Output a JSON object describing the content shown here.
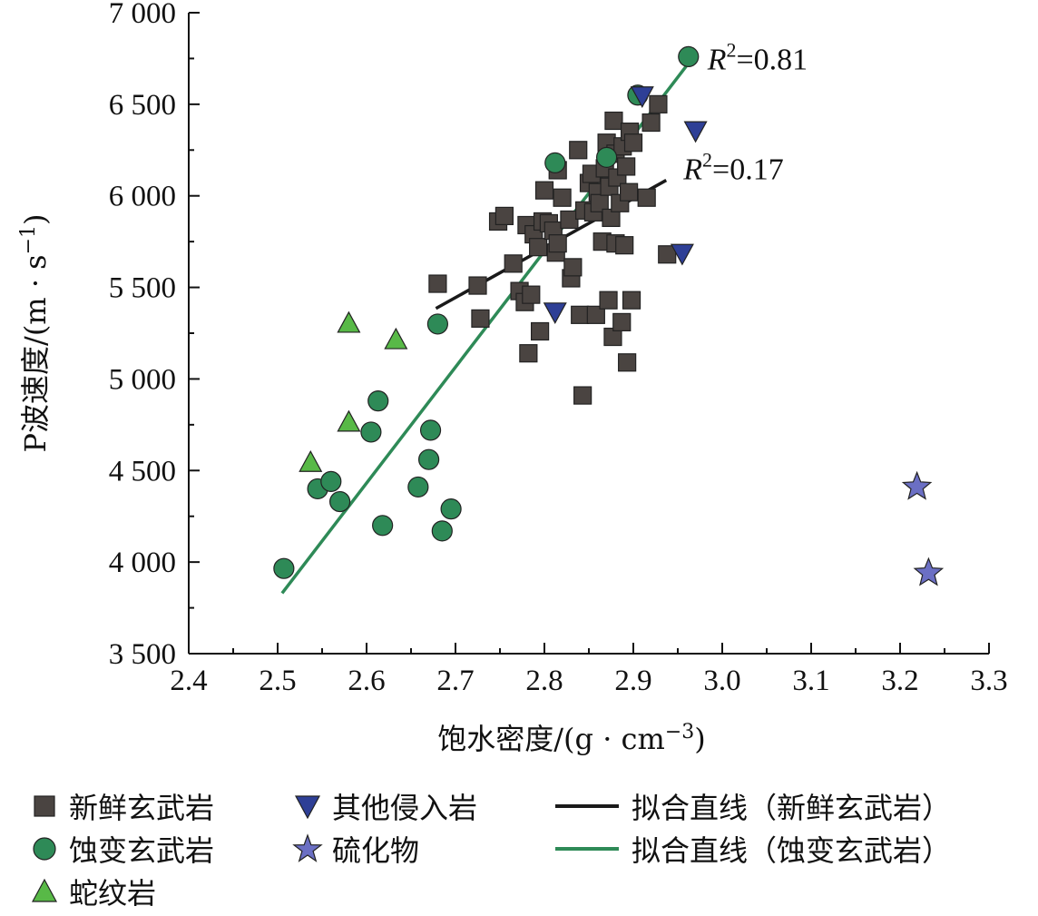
{
  "chart_data": {
    "type": "scatter",
    "title": "",
    "xlabel": "饱水密度/(g · cm",
    "xlabel_sup": "−3",
    "xlabel_end": ")",
    "ylabel": "P波速度/(m · s",
    "ylabel_sup": "−1",
    "ylabel_end": ")",
    "xlim": [
      2.4,
      3.3
    ],
    "ylim": [
      3500,
      7000
    ],
    "xticks": [
      "2.4",
      "2.5",
      "2.6",
      "2.7",
      "2.8",
      "2.9",
      "3.0",
      "3.1",
      "3.2",
      "3.3"
    ],
    "xtick_values": [
      2.4,
      2.5,
      2.6,
      2.7,
      2.8,
      2.9,
      3.0,
      3.1,
      3.2,
      3.3
    ],
    "yticks": [
      "3 500",
      "4 000",
      "4 500",
      "5 000",
      "5 500",
      "6 000",
      "6 500",
      "7 000"
    ],
    "ytick_values": [
      3500,
      4000,
      4500,
      5000,
      5500,
      6000,
      6500,
      7000
    ],
    "colors": {
      "fresh_basalt": "#4a4441",
      "altered_basalt": "#2e8a57",
      "serpentinite": "#58b947",
      "other_intrusive": "#2e3f96",
      "sulfide": "#6b6fc4",
      "fit_fresh": "#1a1a1a",
      "fit_altered": "#2e8a57"
    },
    "series": [
      {
        "name": "新鲜玄武岩",
        "marker": "square",
        "color_key": "fresh_basalt",
        "points": [
          [
            2.68,
            5520
          ],
          [
            2.725,
            5510
          ],
          [
            2.728,
            5330
          ],
          [
            2.748,
            5860
          ],
          [
            2.755,
            5890
          ],
          [
            2.765,
            5630
          ],
          [
            2.772,
            5480
          ],
          [
            2.778,
            5420
          ],
          [
            2.78,
            5840
          ],
          [
            2.782,
            5140
          ],
          [
            2.785,
            5460
          ],
          [
            2.788,
            5790
          ],
          [
            2.793,
            5720
          ],
          [
            2.795,
            5260
          ],
          [
            2.798,
            5860
          ],
          [
            2.8,
            6030
          ],
          [
            2.805,
            5850
          ],
          [
            2.81,
            5810
          ],
          [
            2.813,
            5690
          ],
          [
            2.815,
            5740
          ],
          [
            2.815,
            6140
          ],
          [
            2.82,
            5990
          ],
          [
            2.828,
            5870
          ],
          [
            2.83,
            5550
          ],
          [
            2.832,
            5610
          ],
          [
            2.838,
            6250
          ],
          [
            2.84,
            5350
          ],
          [
            2.843,
            4910
          ],
          [
            2.845,
            5920
          ],
          [
            2.85,
            6070
          ],
          [
            2.853,
            6120
          ],
          [
            2.855,
            5910
          ],
          [
            2.858,
            5350
          ],
          [
            2.86,
            6020
          ],
          [
            2.862,
            5960
          ],
          [
            2.865,
            5750
          ],
          [
            2.868,
            6150
          ],
          [
            2.87,
            6290
          ],
          [
            2.872,
            5430
          ],
          [
            2.873,
            6050
          ],
          [
            2.875,
            5880
          ],
          [
            2.877,
            5230
          ],
          [
            2.878,
            6410
          ],
          [
            2.88,
            6230
          ],
          [
            2.88,
            5740
          ],
          [
            2.882,
            6100
          ],
          [
            2.885,
            5960
          ],
          [
            2.887,
            5310
          ],
          [
            2.888,
            6270
          ],
          [
            2.89,
            5730
          ],
          [
            2.892,
            6160
          ],
          [
            2.893,
            5090
          ],
          [
            2.895,
            6020
          ],
          [
            2.896,
            6350
          ],
          [
            2.898,
            5430
          ],
          [
            2.9,
            6290
          ],
          [
            2.915,
            5990
          ],
          [
            2.92,
            6400
          ],
          [
            2.928,
            6500
          ],
          [
            2.938,
            5680
          ]
        ]
      },
      {
        "name": "蚀变玄武岩",
        "marker": "circle",
        "color_key": "altered_basalt",
        "points": [
          [
            2.507,
            3965
          ],
          [
            2.545,
            4400
          ],
          [
            2.56,
            4440
          ],
          [
            2.57,
            4330
          ],
          [
            2.605,
            4710
          ],
          [
            2.613,
            4880
          ],
          [
            2.618,
            4200
          ],
          [
            2.658,
            4410
          ],
          [
            2.67,
            4560
          ],
          [
            2.672,
            4720
          ],
          [
            2.68,
            5300
          ],
          [
            2.685,
            4170
          ],
          [
            2.695,
            4290
          ],
          [
            2.812,
            6180
          ],
          [
            2.87,
            6210
          ],
          [
            2.905,
            6550
          ],
          [
            2.962,
            6760
          ]
        ]
      },
      {
        "name": "蛇纹岩",
        "marker": "triangle-up",
        "color_key": "serpentinite",
        "points": [
          [
            2.537,
            4540
          ],
          [
            2.58,
            4760
          ],
          [
            2.58,
            5300
          ],
          [
            2.633,
            5210
          ]
        ]
      },
      {
        "name": "其他侵入岩",
        "marker": "triangle-down",
        "color_key": "other_intrusive",
        "points": [
          [
            2.91,
            6550
          ],
          [
            2.97,
            6360
          ],
          [
            2.955,
            5690
          ],
          [
            2.812,
            5370
          ]
        ]
      },
      {
        "name": "硫化物",
        "marker": "star",
        "color_key": "sulfide",
        "points": [
          [
            3.219,
            4410
          ],
          [
            3.232,
            3940
          ]
        ]
      }
    ],
    "fits": [
      {
        "name": "拟合直线（新鲜玄武岩）",
        "color_key": "fit_fresh",
        "x": [
          2.678,
          2.937
        ],
        "y": [
          5385,
          6085
        ],
        "r2_label": "=0.17",
        "r2_at": [
          2.938,
          6100
        ]
      },
      {
        "name": "拟合直线（蚀变玄武岩）",
        "color_key": "fit_altered",
        "x": [
          2.505,
          2.963
        ],
        "y": [
          3830,
          6730
        ],
        "r2_label": "=0.81",
        "r2_at": [
          2.965,
          6700
        ]
      }
    ],
    "r2_symbol": "R",
    "r2_sup": "2",
    "legend": {
      "placement": "bottom",
      "items": [
        {
          "label": "新鲜玄武岩",
          "marker": "square",
          "color_key": "fresh_basalt"
        },
        {
          "label": "蚀变玄武岩",
          "marker": "circle",
          "color_key": "altered_basalt"
        },
        {
          "label": "蛇纹岩",
          "marker": "triangle-up",
          "color_key": "serpentinite"
        },
        {
          "label": "其他侵入岩",
          "marker": "triangle-down",
          "color_key": "other_intrusive"
        },
        {
          "label": "硫化物",
          "marker": "star",
          "color_key": "sulfide"
        },
        {
          "label": "拟合直线（新鲜玄武岩）",
          "marker": "line",
          "color_key": "fit_fresh"
        },
        {
          "label": "拟合直线（蚀变玄武岩）",
          "marker": "line",
          "color_key": "fit_altered"
        }
      ]
    }
  }
}
